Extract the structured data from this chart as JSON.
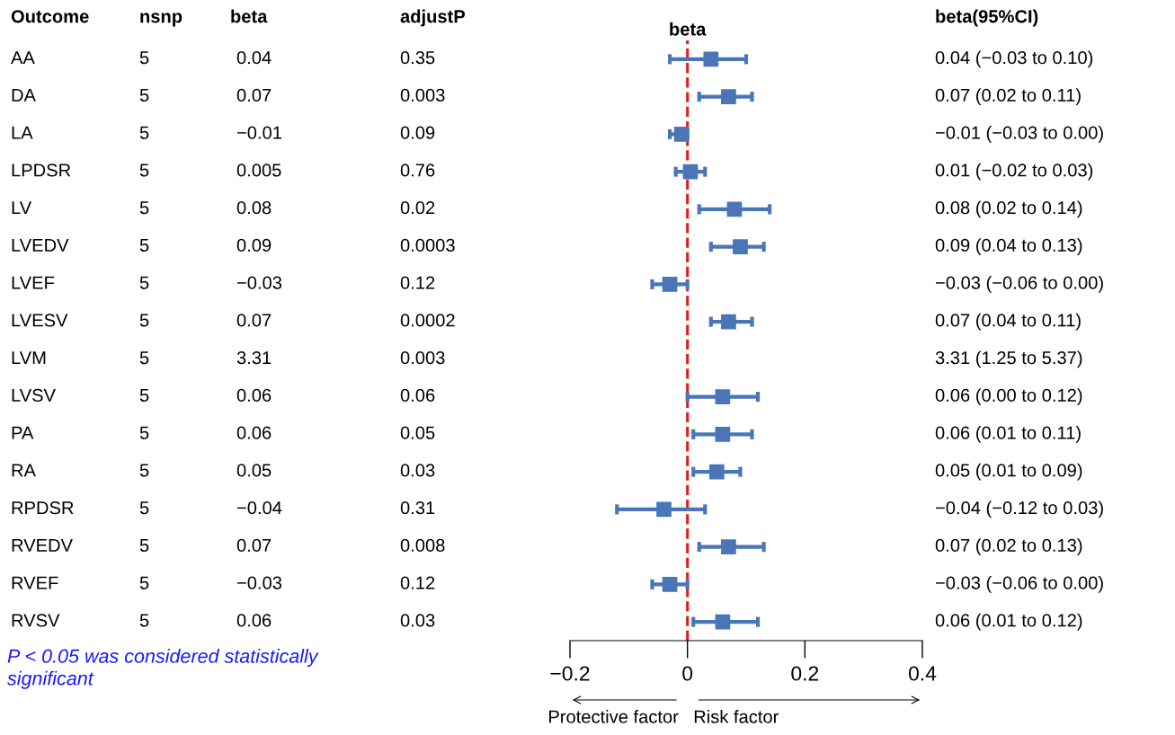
{
  "chart_data": {
    "type": "scatter",
    "orientation": "horizontal",
    "title": "beta",
    "marker": "square",
    "grid": false,
    "categories": [
      null,
      null,
      null,
      null,
      null,
      null,
      null,
      null,
      null,
      null,
      null,
      null,
      null,
      null,
      null,
      null
    ],
    "values": [
      0.04,
      0.07,
      -0.01,
      0.005,
      0.08,
      0.09,
      -0.03,
      0.07,
      null,
      0.06,
      0.06,
      0.05,
      -0.04,
      0.07,
      -0.03,
      0.06
    ],
    "errors": [
      [
        -0.03,
        0.1
      ],
      [
        0.02,
        0.11
      ],
      [
        -0.03,
        0.0
      ],
      [
        -0.02,
        0.03
      ],
      [
        0.02,
        0.14
      ],
      [
        0.04,
        0.13
      ],
      [
        -0.06,
        0.0
      ],
      [
        0.04,
        0.11
      ],
      null,
      [
        0.0,
        0.12
      ],
      [
        0.01,
        0.11
      ],
      [
        0.01,
        0.09
      ],
      [
        -0.12,
        0.03
      ],
      [
        0.02,
        0.13
      ],
      [
        -0.06,
        0.0
      ],
      [
        0.01,
        0.12
      ]
    ],
    "color": "#4a76b8",
    "xlim": [
      -0.2,
      0.4
    ],
    "xticks": [
      {
        "value": -0.2,
        "label": "−0.2"
      },
      {
        "value": 0,
        "label": "0"
      },
      {
        "value": 0.2,
        "label": "0.2"
      },
      {
        "value": 0.4,
        "label": "0.4"
      }
    ],
    "ref_lines": [
      {
        "axis": "x",
        "value": 0,
        "color": "#e41a1c",
        "line_style": "dashed"
      }
    ],
    "annotations": [
      "Outcome",
      "nsnp",
      "beta",
      "adjustP",
      "beta(95%CI)",
      "AA",
      "5",
      "0.04",
      "0.35",
      "0.04 (−0.03 to 0.10)",
      "DA",
      "5",
      "0.07",
      "0.003",
      "0.07 (0.02 to 0.11)",
      "LA",
      "5",
      "−0.01",
      "0.09",
      "−0.01 (−0.03 to 0.00)",
      "LPDSR",
      "5",
      "0.005",
      "0.76",
      "0.01 (−0.02 to 0.03)",
      "LV",
      "5",
      "0.08",
      "0.02",
      "0.08 (0.02 to 0.14)",
      "LVEDV",
      "5",
      "0.09",
      "0.0003",
      "0.09 (0.04 to 0.13)",
      "LVEF",
      "5",
      "−0.03",
      "0.12",
      "−0.03 (−0.06 to 0.00)",
      "LVESV",
      "5",
      "0.07",
      "0.0002",
      "0.07 (0.04 to 0.11)",
      "LVM",
      "5",
      "3.31",
      "0.003",
      "3.31 (1.25 to 5.37)",
      "LVSV",
      "5",
      "0.06",
      "0.06",
      "0.06 (0.00 to 0.12)",
      "PA",
      "5",
      "0.06",
      "0.05",
      "0.06 (0.01 to 0.11)",
      "RA",
      "5",
      "0.05",
      "0.03",
      "0.05 (0.01 to 0.09)",
      "RPDSR",
      "5",
      "−0.04",
      "0.31",
      "−0.04 (−0.12 to 0.03)",
      "RVEDV",
      "5",
      "0.07",
      "0.008",
      "0.07 (0.02 to 0.13)",
      "RVEF",
      "5",
      "−0.03",
      "0.12",
      "−0.03 (−0.06 to 0.00)",
      "RVSV",
      "5",
      "0.06",
      "0.03",
      "0.06 (0.01 to 0.12)",
      "Protective factor",
      "Risk factor",
      "P < 0.05 was considered statistically significant"
    ]
  }
}
